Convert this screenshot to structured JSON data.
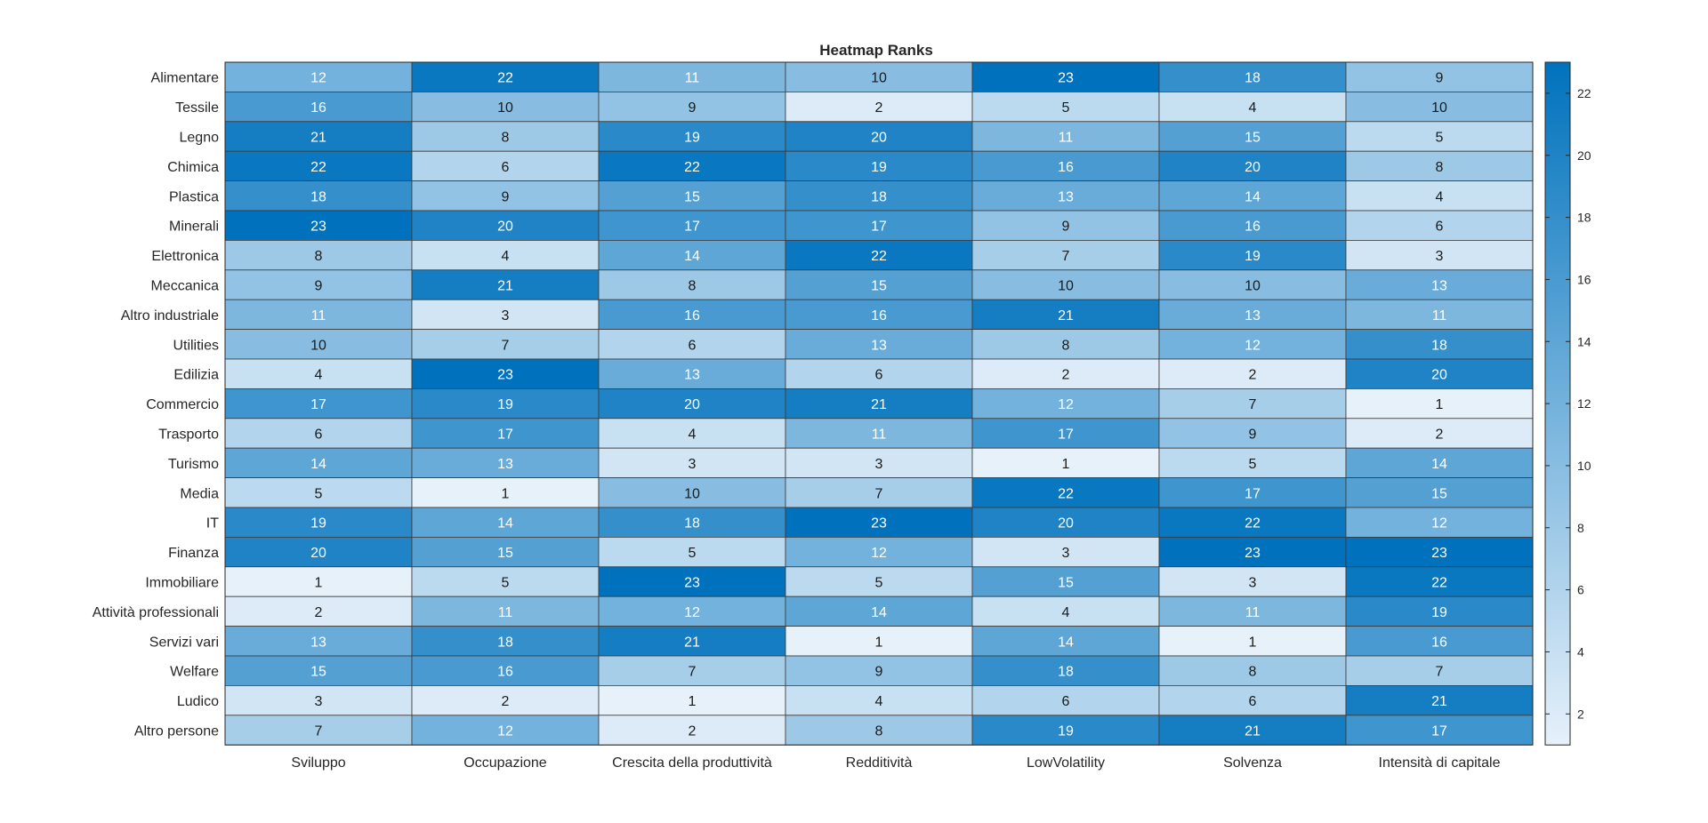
{
  "chart_data": {
    "type": "heatmap",
    "title": "Heatmap Ranks",
    "columns": [
      "Sviluppo",
      "Occupazione",
      "Crescita della produttività",
      "Redditività",
      "LowVolatility",
      "Solvenza",
      "Intensità di capitale"
    ],
    "rows": [
      "Alimentare",
      "Tessile",
      "Legno",
      "Chimica",
      "Plastica",
      "Minerali",
      "Elettronica",
      "Meccanica",
      "Altro industriale",
      "Utilities",
      "Edilizia",
      "Commercio",
      "Trasporto",
      "Turismo",
      "Media",
      "IT",
      "Finanza",
      "Immobiliare",
      "Attività professionali",
      "Servizi vari",
      "Welfare",
      "Ludico",
      "Altro persone"
    ],
    "values": [
      [
        12,
        22,
        11,
        10,
        23,
        18,
        9
      ],
      [
        16,
        10,
        9,
        2,
        5,
        4,
        10
      ],
      [
        21,
        8,
        19,
        20,
        11,
        15,
        5
      ],
      [
        22,
        6,
        22,
        19,
        16,
        20,
        8
      ],
      [
        18,
        9,
        15,
        18,
        13,
        14,
        4
      ],
      [
        23,
        20,
        17,
        17,
        9,
        16,
        6
      ],
      [
        8,
        4,
        14,
        22,
        7,
        19,
        3
      ],
      [
        9,
        21,
        8,
        15,
        10,
        10,
        13
      ],
      [
        11,
        3,
        16,
        16,
        21,
        13,
        11
      ],
      [
        10,
        7,
        6,
        13,
        8,
        12,
        18
      ],
      [
        4,
        23,
        13,
        6,
        2,
        2,
        20
      ],
      [
        17,
        19,
        20,
        21,
        12,
        7,
        1
      ],
      [
        6,
        17,
        4,
        11,
        17,
        9,
        2
      ],
      [
        14,
        13,
        3,
        3,
        1,
        5,
        14
      ],
      [
        5,
        1,
        10,
        7,
        22,
        17,
        15
      ],
      [
        19,
        14,
        18,
        23,
        20,
        22,
        12
      ],
      [
        20,
        15,
        5,
        12,
        3,
        23,
        23
      ],
      [
        1,
        5,
        23,
        5,
        15,
        3,
        22
      ],
      [
        2,
        11,
        12,
        14,
        4,
        11,
        19
      ],
      [
        13,
        18,
        21,
        1,
        14,
        1,
        16
      ],
      [
        15,
        16,
        7,
        9,
        18,
        8,
        7
      ],
      [
        3,
        2,
        1,
        4,
        6,
        6,
        21
      ],
      [
        7,
        12,
        2,
        8,
        19,
        21,
        17
      ]
    ],
    "color_range": [
      1,
      23
    ],
    "colormap": {
      "low": "#e6f1fa",
      "high": "#0072bd"
    },
    "colorbar_ticks": [
      2,
      4,
      6,
      8,
      10,
      12,
      14,
      16,
      18,
      20,
      22
    ],
    "grid": true,
    "legend": "colorbar-right"
  }
}
